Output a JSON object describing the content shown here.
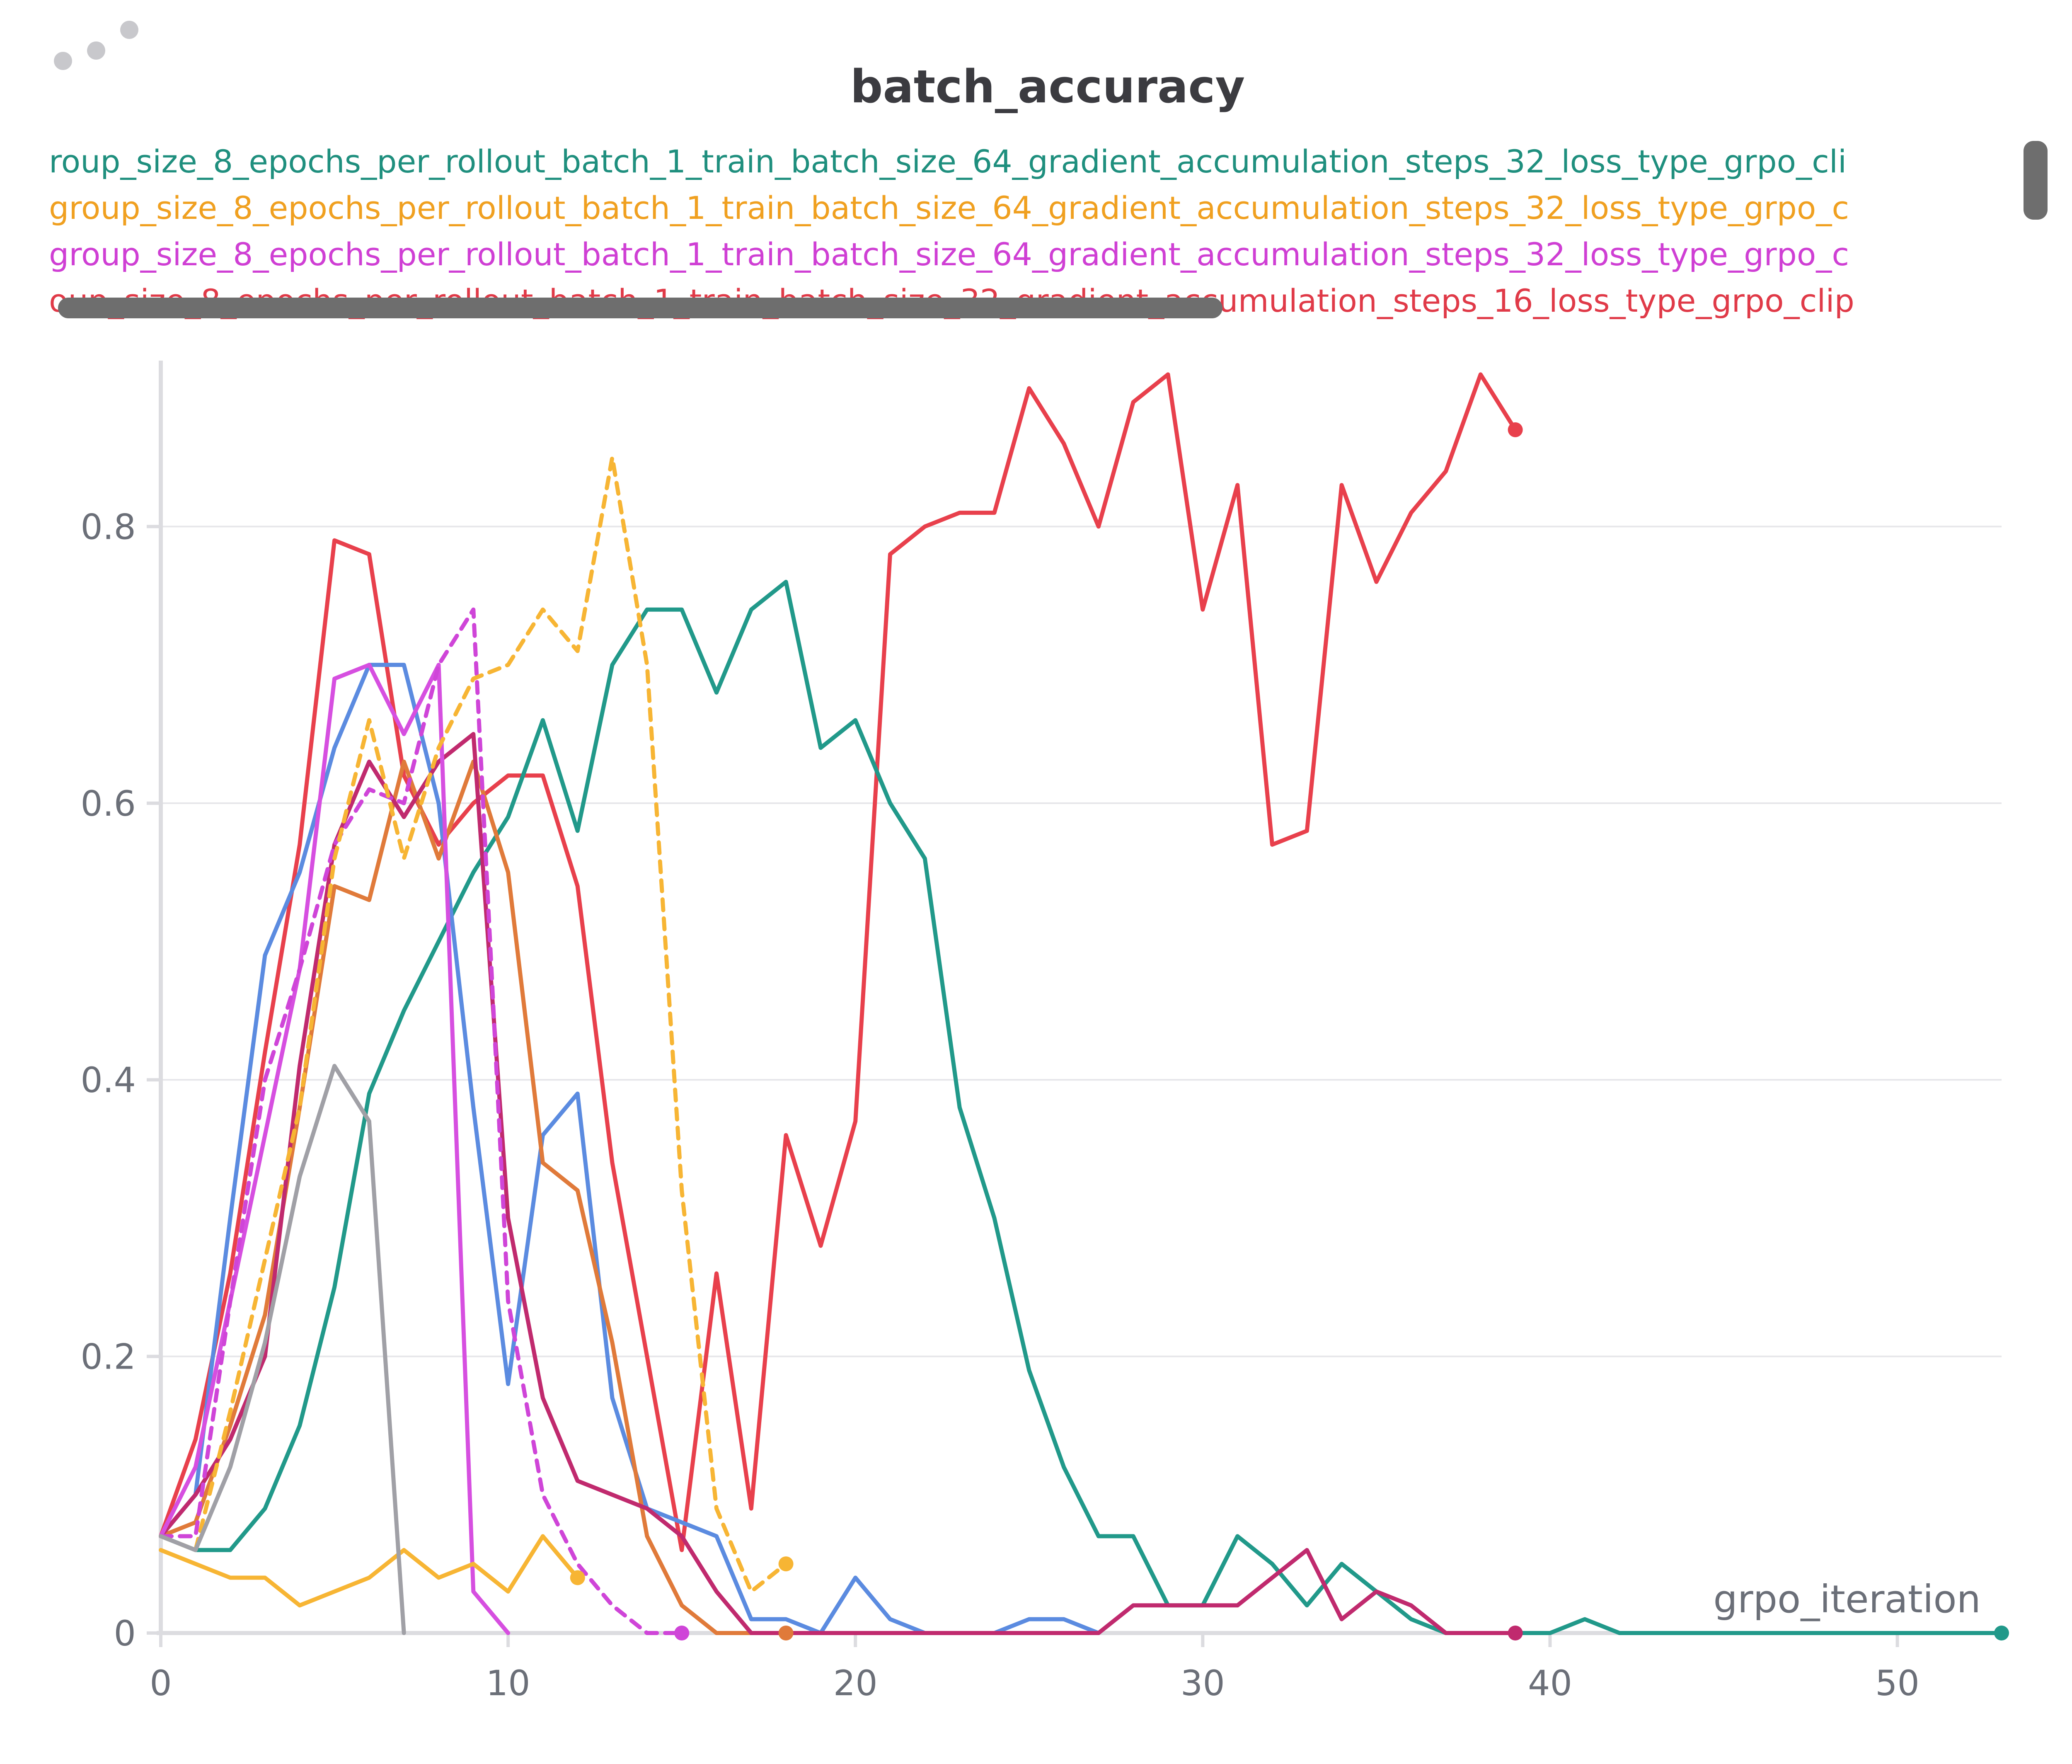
{
  "chart_data": {
    "type": "line",
    "title": "batch_accuracy",
    "xlabel": "grpo_iteration",
    "ylabel": "",
    "xlim": [
      0,
      53
    ],
    "ylim": [
      0,
      0.92
    ],
    "xticks": [
      0,
      10,
      20,
      30,
      40,
      50
    ],
    "yticks": [
      0,
      0.2,
      0.4,
      0.6,
      0.8
    ],
    "ytick_labels": [
      "0",
      "0.2",
      "0.4",
      "0.6",
      "0.8"
    ],
    "grid": true,
    "legend_entries": [
      {
        "text": "roup_size_8_epochs_per_rollout_batch_1_train_batch_size_64_gradient_accumulation_steps_32_loss_type_grpo_cli",
        "color": "#1f8f7e"
      },
      {
        "text": "group_size_8_epochs_per_rollout_batch_1_train_batch_size_64_gradient_accumulation_steps_32_loss_type_grpo_c",
        "color": "#f0a020"
      },
      {
        "text": "group_size_8_epochs_per_rollout_batch_1_train_batch_size_64_gradient_accumulation_steps_32_loss_type_grpo_c",
        "color": "#cf3fd4"
      },
      {
        "text": "oup_size_8_epochs_per_rollout_batch_1_train_batch_size_32_gradient_accumulation_steps_16_loss_type_grpo_clip",
        "color": "#e03a48"
      }
    ],
    "series": [
      {
        "color": "#e8404c",
        "dash": false,
        "end_marker": true,
        "x": [
          0,
          1,
          2,
          3,
          4,
          5,
          6,
          7,
          8,
          9,
          10,
          11,
          12,
          13,
          14,
          15,
          16,
          17,
          18,
          19,
          20,
          21,
          22,
          23,
          24,
          25,
          26,
          27,
          28,
          29,
          30,
          31,
          32,
          33,
          34,
          35,
          36,
          37,
          38,
          39
        ],
        "y": [
          0.07,
          0.14,
          0.26,
          0.42,
          0.57,
          0.79,
          0.78,
          0.62,
          0.57,
          0.6,
          0.62,
          0.62,
          0.54,
          0.34,
          0.2,
          0.06,
          0.26,
          0.09,
          0.36,
          0.28,
          0.37,
          0.78,
          0.8,
          0.81,
          0.81,
          0.9,
          0.86,
          0.8,
          0.89,
          0.91,
          0.74,
          0.83,
          0.57,
          0.58,
          0.83,
          0.76,
          0.81,
          0.84,
          0.91,
          0.87
        ]
      },
      {
        "color": "#21998a",
        "dash": false,
        "end_marker": true,
        "x": [
          0,
          1,
          2,
          3,
          4,
          5,
          6,
          7,
          8,
          9,
          10,
          11,
          12,
          13,
          14,
          15,
          16,
          17,
          18,
          19,
          20,
          21,
          22,
          23,
          24,
          25,
          26,
          27,
          28,
          29,
          30,
          31,
          32,
          33,
          34,
          35,
          36,
          37,
          38,
          39,
          40,
          41,
          42,
          53
        ],
        "y": [
          0.07,
          0.06,
          0.06,
          0.09,
          0.15,
          0.25,
          0.39,
          0.45,
          0.5,
          0.55,
          0.59,
          0.66,
          0.58,
          0.7,
          0.74,
          0.74,
          0.68,
          0.74,
          0.76,
          0.64,
          0.66,
          0.6,
          0.56,
          0.38,
          0.3,
          0.19,
          0.12,
          0.07,
          0.07,
          0.02,
          0.02,
          0.07,
          0.05,
          0.02,
          0.05,
          0.03,
          0.01,
          0.0,
          0.0,
          0.0,
          0.0,
          0.01,
          0.0,
          0.0
        ]
      },
      {
        "color": "#5b8be0",
        "dash": false,
        "end_marker": false,
        "x": [
          0,
          1,
          2,
          3,
          4,
          5,
          6,
          7,
          8,
          9,
          10,
          11,
          12,
          13,
          14,
          15,
          16,
          17,
          18,
          19,
          20,
          21,
          22,
          23,
          24,
          25,
          26,
          27
        ],
        "y": [
          0.07,
          0.1,
          0.3,
          0.49,
          0.55,
          0.64,
          0.7,
          0.7,
          0.6,
          0.38,
          0.18,
          0.36,
          0.39,
          0.17,
          0.09,
          0.08,
          0.07,
          0.01,
          0.01,
          0.0,
          0.04,
          0.01,
          0.0,
          0.0,
          0.0,
          0.01,
          0.01,
          0.0
        ]
      },
      {
        "color": "#e07a3a",
        "dash": false,
        "end_marker": true,
        "x": [
          0,
          1,
          2,
          3,
          4,
          5,
          6,
          7,
          8,
          9,
          10,
          11,
          12,
          13,
          14,
          15,
          16,
          17,
          18
        ],
        "y": [
          0.07,
          0.08,
          0.15,
          0.23,
          0.38,
          0.54,
          0.53,
          0.63,
          0.56,
          0.63,
          0.55,
          0.34,
          0.32,
          0.21,
          0.07,
          0.02,
          0.0,
          0.0,
          0.0
        ]
      },
      {
        "color": "#c02a6e",
        "dash": false,
        "end_marker": true,
        "x": [
          0,
          1,
          2,
          3,
          4,
          5,
          6,
          7,
          8,
          9,
          10,
          11,
          12,
          13,
          14,
          15,
          16,
          17,
          18,
          19,
          20,
          21,
          22,
          23,
          24,
          25,
          26,
          27,
          28,
          29,
          30,
          31,
          32,
          33,
          34,
          35,
          36,
          37,
          38,
          39
        ],
        "y": [
          0.07,
          0.1,
          0.14,
          0.2,
          0.41,
          0.57,
          0.63,
          0.59,
          0.63,
          0.65,
          0.3,
          0.17,
          0.11,
          0.1,
          0.09,
          0.07,
          0.03,
          0.0,
          0.0,
          0.0,
          0.0,
          0.0,
          0.0,
          0.0,
          0.0,
          0.0,
          0.0,
          0.0,
          0.02,
          0.02,
          0.02,
          0.02,
          0.04,
          0.06,
          0.01,
          0.03,
          0.02,
          0.0,
          0.0,
          0.0
        ]
      },
      {
        "color": "#d64fe0",
        "dash": false,
        "end_marker": false,
        "x": [
          0,
          1,
          2,
          3,
          4,
          5,
          6,
          7,
          8,
          9,
          10
        ],
        "y": [
          0.07,
          0.12,
          0.24,
          0.36,
          0.48,
          0.69,
          0.7,
          0.65,
          0.7,
          0.03,
          0.0
        ]
      },
      {
        "color": "#cf45d8",
        "dash": true,
        "end_marker": true,
        "x": [
          0,
          1,
          2,
          3,
          4,
          5,
          6,
          7,
          8,
          9,
          10,
          11,
          12,
          13,
          14,
          15
        ],
        "y": [
          0.07,
          0.07,
          0.24,
          0.4,
          0.48,
          0.57,
          0.61,
          0.6,
          0.7,
          0.74,
          0.24,
          0.1,
          0.05,
          0.02,
          0.0,
          0.0
        ]
      },
      {
        "color": "#f7b534",
        "dash": true,
        "end_marker": true,
        "x": [
          0,
          1,
          2,
          3,
          4,
          5,
          6,
          7,
          8,
          9,
          10,
          11,
          12,
          13,
          14,
          15,
          16,
          17,
          18
        ],
        "y": [
          0.07,
          0.06,
          0.16,
          0.27,
          0.38,
          0.56,
          0.66,
          0.56,
          0.64,
          0.69,
          0.7,
          0.74,
          0.71,
          0.85,
          0.7,
          0.32,
          0.09,
          0.03,
          0.05
        ]
      },
      {
        "color": "#f7b534",
        "dash": false,
        "end_marker": true,
        "x": [
          0,
          1,
          2,
          3,
          4,
          5,
          6,
          7,
          8,
          9,
          10,
          11,
          12
        ],
        "y": [
          0.06,
          0.05,
          0.04,
          0.04,
          0.02,
          0.03,
          0.04,
          0.06,
          0.04,
          0.05,
          0.03,
          0.07,
          0.04
        ]
      },
      {
        "color": "#a0a0a6",
        "dash": false,
        "end_marker": false,
        "x": [
          0,
          1,
          2,
          3,
          4,
          5,
          6,
          7
        ],
        "y": [
          0.07,
          0.06,
          0.12,
          0.21,
          0.33,
          0.41,
          0.37,
          0.0
        ]
      }
    ]
  }
}
